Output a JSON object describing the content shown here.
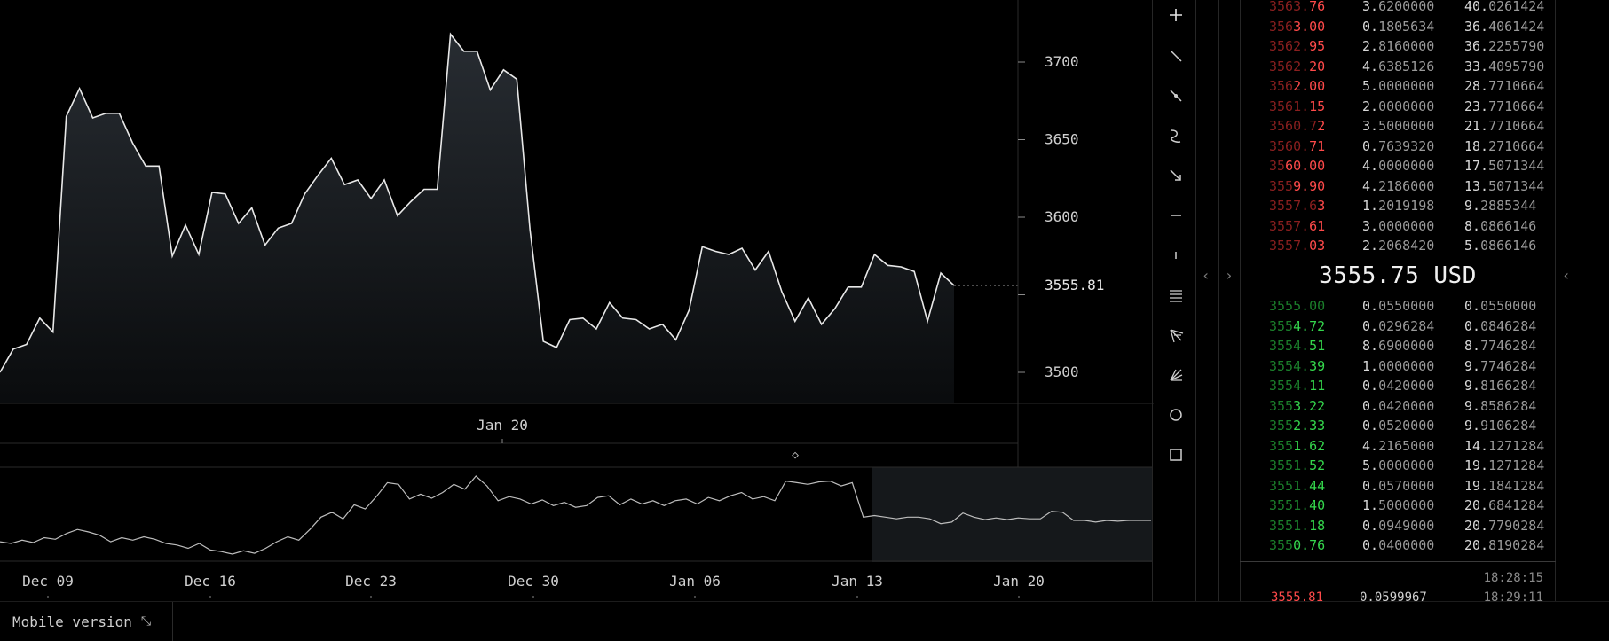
{
  "chart_data": [
    {
      "type": "area",
      "title": "",
      "xlabel": "",
      "ylabel": "",
      "x_tick_labels": [
        "Jan 20"
      ],
      "y_ticks": [
        3500,
        3550,
        3600,
        3650,
        3700
      ],
      "y_tick_labels": [
        "3700",
        "3650",
        "3600",
        "3500"
      ],
      "ylim": [
        3480,
        3740
      ],
      "last_price_label": "3555.81",
      "values": [
        3500,
        3515,
        3518,
        3535,
        3526,
        3665,
        3683,
        3664,
        3667,
        3667,
        3648,
        3633,
        3633,
        3575,
        3595,
        3576,
        3616,
        3615,
        3596,
        3606,
        3582,
        3593,
        3596,
        3615,
        3627,
        3638,
        3621,
        3624,
        3612,
        3624,
        3601,
        3610,
        3618,
        3618,
        3718,
        3707,
        3707,
        3682,
        3695,
        3689,
        3592,
        3520,
        3516,
        3534,
        3535,
        3528,
        3545,
        3535,
        3534,
        3528,
        3531,
        3521,
        3540,
        3581,
        3578,
        3576,
        3580,
        3566,
        3578,
        3552,
        3533,
        3548,
        3531,
        3541,
        3555,
        3555,
        3576,
        3569,
        3568,
        3565,
        3533,
        3564,
        3556
      ]
    },
    {
      "type": "line",
      "title": "",
      "x_tick_labels": [
        "Dec 09",
        "Dec 16",
        "Dec 23",
        "Dec 30",
        "Jan 06",
        "Jan 13",
        "Jan 20"
      ],
      "values": [
        3560,
        3558,
        3562,
        3559,
        3565,
        3563,
        3570,
        3575,
        3572,
        3568,
        3560,
        3565,
        3562,
        3566,
        3563,
        3558,
        3556,
        3552,
        3558,
        3550,
        3548,
        3545,
        3549,
        3546,
        3552,
        3560,
        3566,
        3562,
        3575,
        3590,
        3596,
        3588,
        3605,
        3600,
        3615,
        3632,
        3630,
        3612,
        3618,
        3613,
        3620,
        3630,
        3624,
        3640,
        3628,
        3610,
        3615,
        3612,
        3606,
        3611,
        3604,
        3608,
        3602,
        3604,
        3614,
        3616,
        3605,
        3612,
        3606,
        3610,
        3604,
        3610,
        3612,
        3606,
        3614,
        3610,
        3616,
        3620,
        3612,
        3615,
        3610,
        3634,
        3632,
        3630,
        3633,
        3634,
        3628,
        3632,
        3590,
        3592,
        3590,
        3588,
        3590,
        3590,
        3588,
        3582,
        3584,
        3595,
        3590,
        3587,
        3589,
        3587,
        3589,
        3588,
        3588,
        3597,
        3596,
        3586,
        3586,
        3584,
        3586,
        3585,
        3586,
        3586,
        3586
      ]
    }
  ],
  "toolbar": {
    "icons": [
      "plus-icon",
      "trend-line-icon",
      "ray-icon",
      "curve-icon",
      "arrow-icon",
      "horizontal-line-icon",
      "vertical-line-icon",
      "parallel-lines-icon",
      "pitchfork-icon",
      "fib-fan-icon",
      "circle-icon",
      "rectangle-icon"
    ]
  },
  "orderbook": {
    "asks": [
      {
        "price_hi": "3563.",
        "price_lo": "76",
        "amount_a": "3.",
        "amount_b": "6200000",
        "sum_a": "40.",
        "sum_b": "0261424"
      },
      {
        "price_hi": "356",
        "price_lo": "3.00",
        "amount_a": "0.",
        "amount_b": "1805634",
        "sum_a": "36.",
        "sum_b": "4061424"
      },
      {
        "price_hi": "3562.",
        "price_lo": "95",
        "amount_a": "2.",
        "amount_b": "8160000",
        "sum_a": "36.",
        "sum_b": "2255790"
      },
      {
        "price_hi": "3562.",
        "price_lo": "20",
        "amount_a": "4.",
        "amount_b": "6385126",
        "sum_a": "33.",
        "sum_b": "4095790"
      },
      {
        "price_hi": "356",
        "price_lo": "2.00",
        "amount_a": "5.",
        "amount_b": "0000000",
        "sum_a": "28.",
        "sum_b": "7710664"
      },
      {
        "price_hi": "3561.",
        "price_lo": "15",
        "amount_a": "2.",
        "amount_b": "0000000",
        "sum_a": "23.",
        "sum_b": "7710664"
      },
      {
        "price_hi": "3560.7",
        "price_lo": "2",
        "amount_a": "3.",
        "amount_b": "5000000",
        "sum_a": "21.",
        "sum_b": "7710664"
      },
      {
        "price_hi": "3560.",
        "price_lo": "71",
        "amount_a": "0.",
        "amount_b": "7639320",
        "sum_a": "18.",
        "sum_b": "2710664"
      },
      {
        "price_hi": "35",
        "price_lo": "60.00",
        "amount_a": "4.",
        "amount_b": "0000000",
        "sum_a": "17.",
        "sum_b": "5071344"
      },
      {
        "price_hi": "355",
        "price_lo": "9.90",
        "amount_a": "4.",
        "amount_b": "2186000",
        "sum_a": "13.",
        "sum_b": "5071344"
      },
      {
        "price_hi": "3557.6",
        "price_lo": "3",
        "amount_a": "1.",
        "amount_b": "2019198",
        "sum_a": "9.",
        "sum_b": "2885344"
      },
      {
        "price_hi": "3557.",
        "price_lo": "61",
        "amount_a": "3.",
        "amount_b": "0000000",
        "sum_a": "8.",
        "sum_b": "0866146"
      },
      {
        "price_hi": "3557.",
        "price_lo": "03",
        "amount_a": "2.",
        "amount_b": "2068420",
        "sum_a": "5.",
        "sum_b": "0866146"
      }
    ],
    "mid_price": "3555.75 USD",
    "bids": [
      {
        "price_lo": "3555.00",
        "price_hi": "",
        "amount_a": "0.",
        "amount_b": "0550000",
        "sum_a": "0.",
        "sum_b": "0550000"
      },
      {
        "price_lo": "355",
        "price_hi": "4.72",
        "amount_a": "0.",
        "amount_b": "0296284",
        "sum_a": "0.",
        "sum_b": "0846284"
      },
      {
        "price_lo": "3554.",
        "price_hi": "51",
        "amount_a": "8.",
        "amount_b": "6900000",
        "sum_a": "8.",
        "sum_b": "7746284"
      },
      {
        "price_lo": "3554.",
        "price_hi": "39",
        "amount_a": "1.",
        "amount_b": "0000000",
        "sum_a": "9.",
        "sum_b": "7746284"
      },
      {
        "price_lo": "3554.",
        "price_hi": "11",
        "amount_a": "0.",
        "amount_b": "0420000",
        "sum_a": "9.",
        "sum_b": "8166284"
      },
      {
        "price_lo": "355",
        "price_hi": "3.22",
        "amount_a": "0.",
        "amount_b": "0420000",
        "sum_a": "9.",
        "sum_b": "8586284"
      },
      {
        "price_lo": "355",
        "price_hi": "2.33",
        "amount_a": "0.",
        "amount_b": "0520000",
        "sum_a": "9.",
        "sum_b": "9106284"
      },
      {
        "price_lo": "355",
        "price_hi": "1.62",
        "amount_a": "4.",
        "amount_b": "2165000",
        "sum_a": "14.",
        "sum_b": "1271284"
      },
      {
        "price_lo": "3551.",
        "price_hi": "52",
        "amount_a": "5.",
        "amount_b": "0000000",
        "sum_a": "19.",
        "sum_b": "1271284"
      },
      {
        "price_lo": "3551.",
        "price_hi": "44",
        "amount_a": "0.",
        "amount_b": "0570000",
        "sum_a": "19.",
        "sum_b": "1841284"
      },
      {
        "price_lo": "3551.",
        "price_hi": "40",
        "amount_a": "1.",
        "amount_b": "5000000",
        "sum_a": "20.",
        "sum_b": "6841284"
      },
      {
        "price_lo": "3551.",
        "price_hi": "18",
        "amount_a": "0.",
        "amount_b": "0949000",
        "sum_a": "20.",
        "sum_b": "7790284"
      },
      {
        "price_lo": "355",
        "price_hi": "0.76",
        "amount_a": "0.",
        "amount_b": "0400000",
        "sum_a": "20.",
        "sum_b": "8190284"
      }
    ],
    "trades": [
      {
        "time": "18:28:15"
      },
      {
        "price": "3555.81",
        "amount": "0.0599967",
        "time": "18:29:11"
      }
    ]
  },
  "bottom": {
    "mobile_label": "Mobile version",
    "mobile_icon": "collapse-arrows-icon"
  }
}
